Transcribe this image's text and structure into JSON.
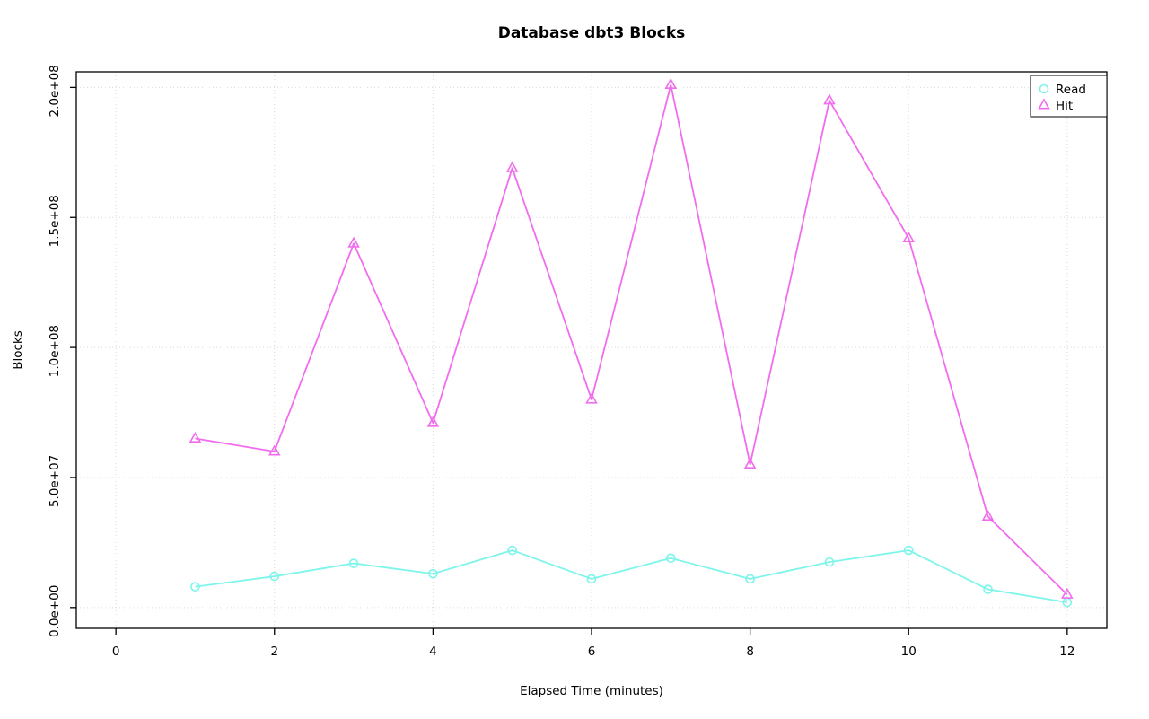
{
  "page": {
    "background": "#FFFFFF"
  },
  "chart_data": {
    "type": "line",
    "title": "Database dbt3 Blocks",
    "xlabel": "Elapsed Time (minutes)",
    "ylabel": "Blocks",
    "x": [
      1,
      2,
      3,
      4,
      5,
      6,
      7,
      8,
      9,
      10,
      11,
      12
    ],
    "series": [
      {
        "name": "Read",
        "color": "#7DF5EA",
        "marker": "circle",
        "values": [
          8000000,
          12000000,
          17000000,
          13000000,
          22000000,
          11000000,
          19000000,
          11000000,
          17500000,
          22000000,
          7000000,
          2000000
        ]
      },
      {
        "name": "Hit",
        "color": "#F26CEE",
        "marker": "triangle",
        "values": [
          65000000,
          60000000,
          140000000,
          71000000,
          169000000,
          80000000,
          201000000,
          55000000,
          195000000,
          142000000,
          35000000,
          5000000
        ]
      }
    ],
    "xticks": {
      "values": [
        0,
        2,
        4,
        6,
        8,
        10,
        12
      ],
      "labels": [
        "0",
        "2",
        "4",
        "6",
        "8",
        "10",
        "12"
      ]
    },
    "yticks": {
      "values": [
        0,
        50000000.0,
        100000000.0,
        150000000.0,
        200000000.0
      ],
      "labels": [
        "0.0e+00",
        "5.0e+07",
        "1.0e+08",
        "1.5e+08",
        "2.0e+08"
      ]
    },
    "xlim": [
      -0.5,
      12.5
    ],
    "ylim": [
      -8000000,
      206000000
    ],
    "grid": true,
    "grid_color": "#D9D9D9",
    "axis_color": "#000000",
    "legend": {
      "position": "top-right",
      "entries": [
        "Read",
        "Hit"
      ]
    }
  }
}
